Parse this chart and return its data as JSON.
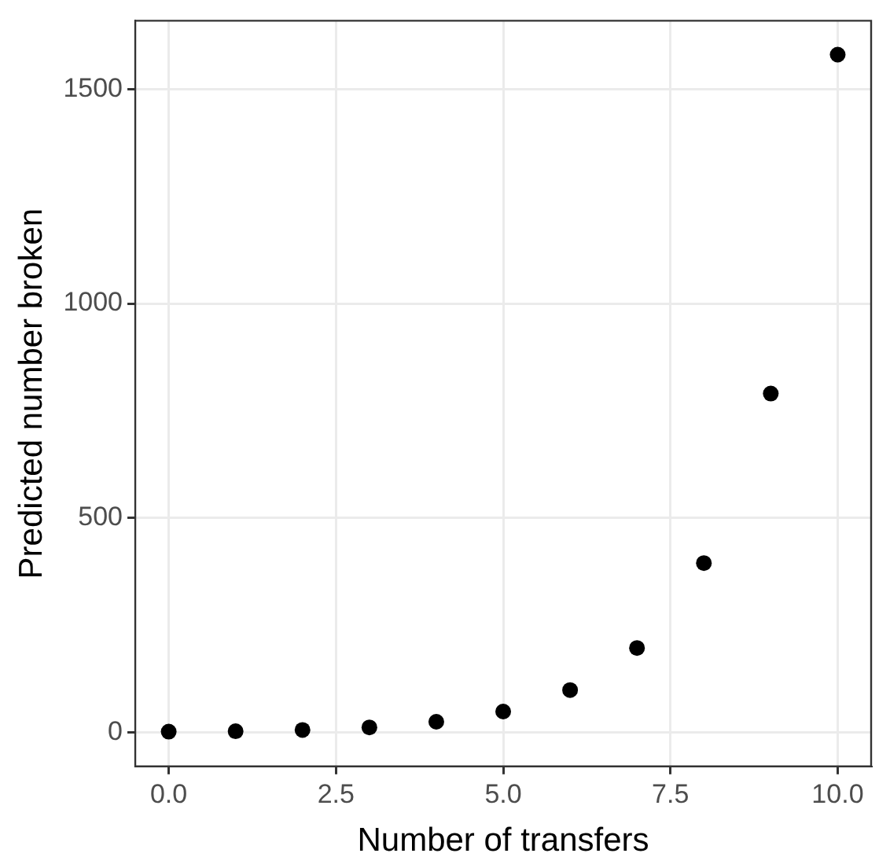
{
  "chart_data": {
    "type": "scatter",
    "xlabel": "Number of transfers",
    "ylabel": "Predicted number broken",
    "x": [
      0,
      1,
      2,
      3,
      4,
      5,
      6,
      7,
      8,
      9,
      10
    ],
    "series": [
      {
        "color": "#000000",
        "values": [
          2,
          3,
          6,
          12,
          25,
          49,
          99,
          197,
          395,
          790,
          1580
        ]
      }
    ],
    "xlim": [
      -0.5,
      10.5
    ],
    "ylim": [
      -79,
      1659
    ],
    "xticks": [
      {
        "value": 0,
        "label": "0.0"
      },
      {
        "value": 2.5,
        "label": "2.5"
      },
      {
        "value": 5,
        "label": "5.0"
      },
      {
        "value": 7.5,
        "label": "7.5"
      },
      {
        "value": 10,
        "label": "10.0"
      }
    ],
    "yticks": [
      0,
      500,
      1000,
      1500
    ],
    "grid": true,
    "marker": "circle",
    "legend": false
  }
}
